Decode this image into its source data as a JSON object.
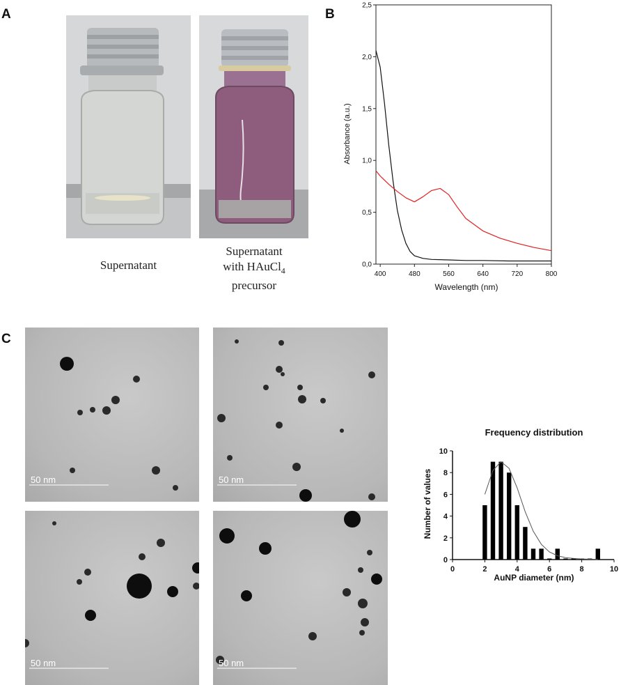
{
  "panels": {
    "a": {
      "label": "A",
      "captions": {
        "left": "Supernatant",
        "right_line1": "Supernatant",
        "right_line2_prefix": "with HAuCl",
        "right_line2_subscript": "4",
        "right_line3": "precursor"
      },
      "colors": {
        "clear_liquid": "#d9dcd6",
        "purple_liquid": "#8e5d7d",
        "cap": "#b9bcc0"
      }
    },
    "b": {
      "label": "B"
    },
    "c": {
      "label": "C",
      "scale_bar_label": "50 nm"
    }
  },
  "chart_data": [
    {
      "type": "line",
      "panel": "B",
      "title": "",
      "xlabel": "Wavelength (nm)",
      "ylabel": "Absorbance (a.u.)",
      "xlim": [
        390,
        800
      ],
      "ylim": [
        0,
        2.5
      ],
      "x_ticks": [
        "400",
        "480",
        "560",
        "640",
        "720",
        "800"
      ],
      "x_tick_values": [
        400,
        480,
        560,
        640,
        720,
        800
      ],
      "y_ticks": [
        "0,0",
        "0,5",
        "1,0",
        "1,5",
        "2,0",
        "2,5"
      ],
      "y_tick_values": [
        0,
        0.5,
        1.0,
        1.5,
        2.0,
        2.5
      ],
      "grid": false,
      "series": [
        {
          "color": "#111111",
          "x": [
            390,
            400,
            410,
            420,
            430,
            440,
            450,
            460,
            470,
            480,
            500,
            520,
            560,
            600,
            640,
            700,
            760,
            800
          ],
          "y": [
            2.06,
            1.9,
            1.55,
            1.15,
            0.8,
            0.52,
            0.33,
            0.2,
            0.12,
            0.08,
            0.055,
            0.045,
            0.04,
            0.035,
            0.035,
            0.03,
            0.03,
            0.03
          ]
        },
        {
          "color": "#e02020",
          "x": [
            390,
            400,
            420,
            440,
            460,
            480,
            500,
            520,
            540,
            560,
            580,
            600,
            640,
            680,
            720,
            760,
            800
          ],
          "y": [
            0.9,
            0.85,
            0.77,
            0.7,
            0.64,
            0.6,
            0.65,
            0.71,
            0.73,
            0.67,
            0.55,
            0.44,
            0.32,
            0.25,
            0.2,
            0.16,
            0.13
          ]
        }
      ]
    },
    {
      "type": "bar",
      "panel": "C",
      "title": "Frequency distribution",
      "xlabel": "AuNP diameter (nm)",
      "ylabel": "Number of values",
      "xlim": [
        0,
        10
      ],
      "ylim": [
        0,
        10
      ],
      "x_ticks": [
        "0",
        "2",
        "4",
        "6",
        "8",
        "10"
      ],
      "x_tick_values": [
        0,
        2,
        4,
        6,
        8,
        10
      ],
      "y_ticks": [
        "0",
        "2",
        "4",
        "6",
        "8",
        "10"
      ],
      "y_tick_values": [
        0,
        2,
        4,
        6,
        8,
        10
      ],
      "bar_color": "#000000",
      "bins": [
        2.0,
        2.5,
        3.0,
        3.5,
        4.0,
        4.5,
        5.0,
        5.5,
        6.0,
        6.5,
        7.0,
        7.5,
        8.0,
        8.5,
        9.0
      ],
      "values": [
        5,
        9,
        9,
        8,
        5,
        3,
        1,
        1,
        0,
        1,
        0,
        0,
        0,
        0,
        1
      ],
      "fit_curve": {
        "x": [
          2.0,
          2.5,
          3.0,
          3.5,
          4.0,
          4.5,
          5.0,
          5.5,
          6.0,
          6.5,
          7.0,
          7.5,
          8.0,
          8.5,
          9.0
        ],
        "y": [
          6.0,
          8.2,
          9.0,
          8.4,
          6.6,
          4.4,
          2.6,
          1.4,
          0.7,
          0.35,
          0.18,
          0.1,
          0.06,
          0.03,
          0.02
        ]
      }
    }
  ]
}
